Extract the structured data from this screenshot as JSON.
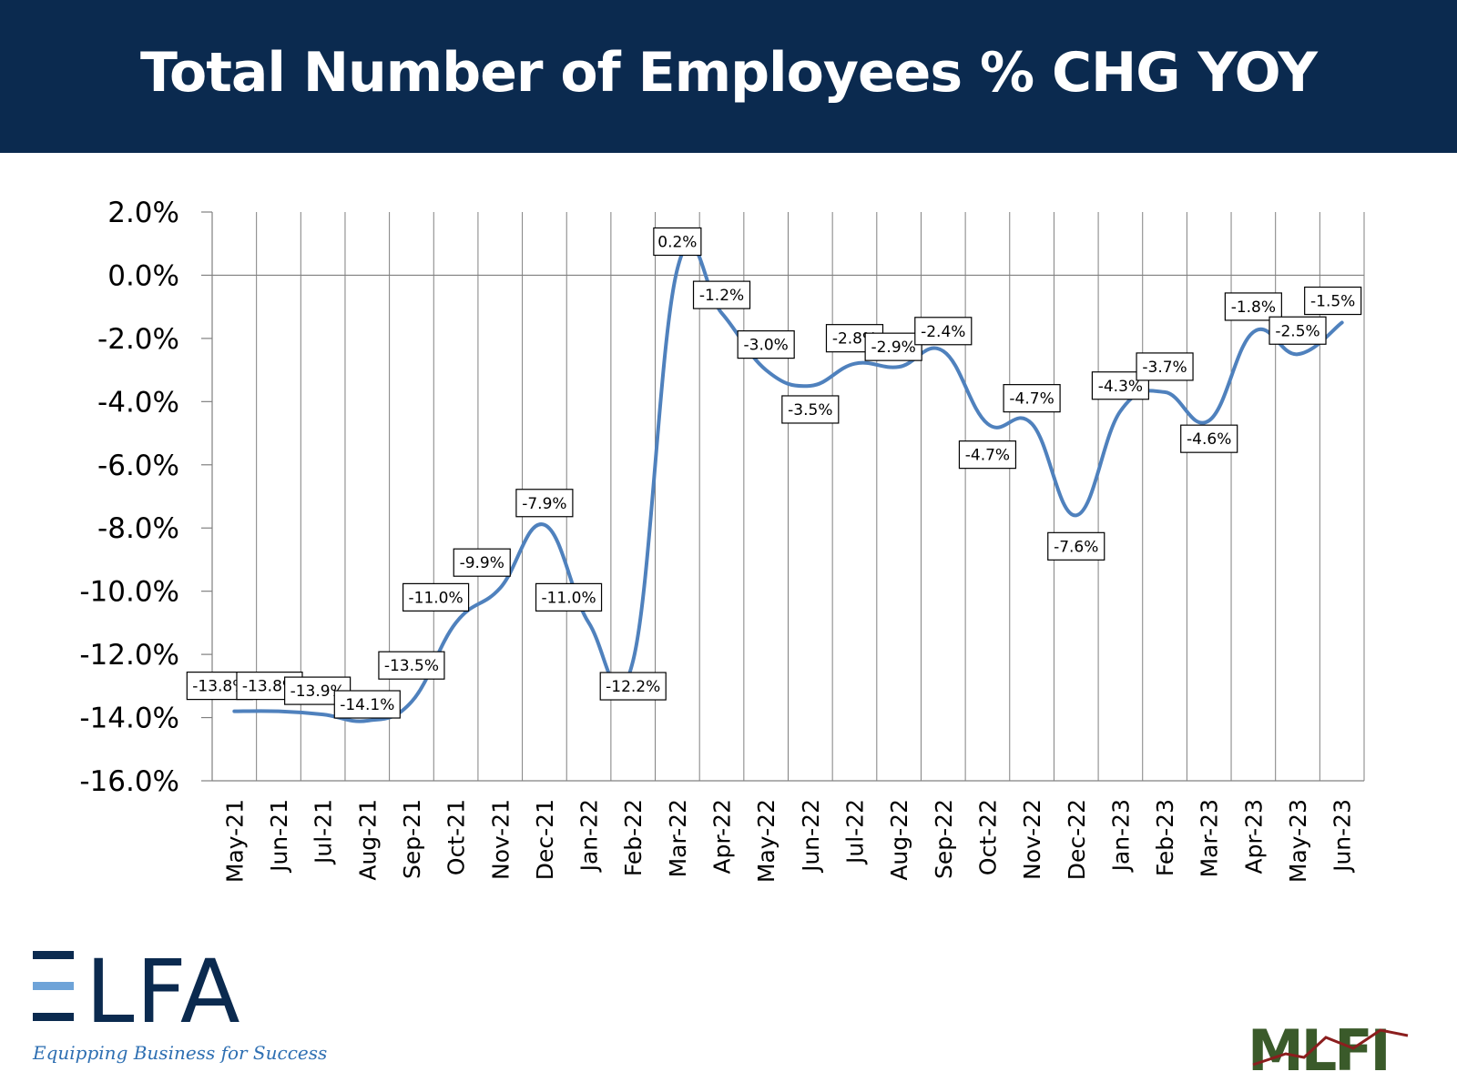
{
  "title": "Total Number of Employees % CHG YOY",
  "chart_data": {
    "type": "line",
    "title": "Total Number of Employees % CHG YOY",
    "categories": [
      "May-21",
      "Jun-21",
      "Jul-21",
      "Aug-21",
      "Sep-21",
      "Oct-21",
      "Nov-21",
      "Dec-21",
      "Jan-22",
      "Feb-22",
      "Mar-22",
      "Apr-22",
      "May-22",
      "Jun-22",
      "Jul-22",
      "Aug-22",
      "Sep-22",
      "Oct-22",
      "Nov-22",
      "Dec-22",
      "Jan-23",
      "Feb-23",
      "Mar-23",
      "Apr-23",
      "May-23",
      "Jun-23"
    ],
    "series": [
      {
        "values": [
          -13.8,
          -13.8,
          -13.9,
          -14.1,
          -13.5,
          -11.0,
          -9.9,
          -7.9,
          -11.0,
          -12.2,
          0.2,
          -1.2,
          -3.0,
          -3.5,
          -2.8,
          -2.9,
          -2.4,
          -4.7,
          -4.7,
          -7.6,
          -4.3,
          -3.7,
          -4.6,
          -1.8,
          -2.5,
          -1.5
        ]
      }
    ],
    "data_labels": [
      "-13.8%",
      "-13.8%",
      "-13.9%",
      "-14.1%",
      "-13.5%",
      "-11.0%",
      "-9.9%",
      "-7.9%",
      "-11.0%",
      "-12.2%",
      "0.2%",
      "-1.2%",
      "-3.0%",
      "-3.5%",
      "-2.8%",
      "-2.9%",
      "-2.4%",
      "-4.7%",
      "-4.7%",
      "-7.6%",
      "-4.3%",
      "-3.7%",
      "-4.6%",
      "-1.8%",
      "-2.5%",
      "-1.5%"
    ],
    "yticks": [
      "2.0%",
      "0.0%",
      "-2.0%",
      "-4.0%",
      "-6.0%",
      "-8.0%",
      "-10.0%",
      "-12.0%",
      "-14.0%",
      "-16.0%"
    ],
    "ylim": [
      -16,
      2
    ],
    "xlabel": "",
    "ylabel": "",
    "grid": "vertical",
    "line_color": "#4f81bd"
  },
  "logos": {
    "elfa": {
      "text": "ELFA",
      "tagline": "Equipping Business for Success",
      "color": "#0b2a4f",
      "accent": "#6ea3d8"
    },
    "mlfi": {
      "text": "MLFI",
      "color": "#3a5a2a"
    }
  }
}
